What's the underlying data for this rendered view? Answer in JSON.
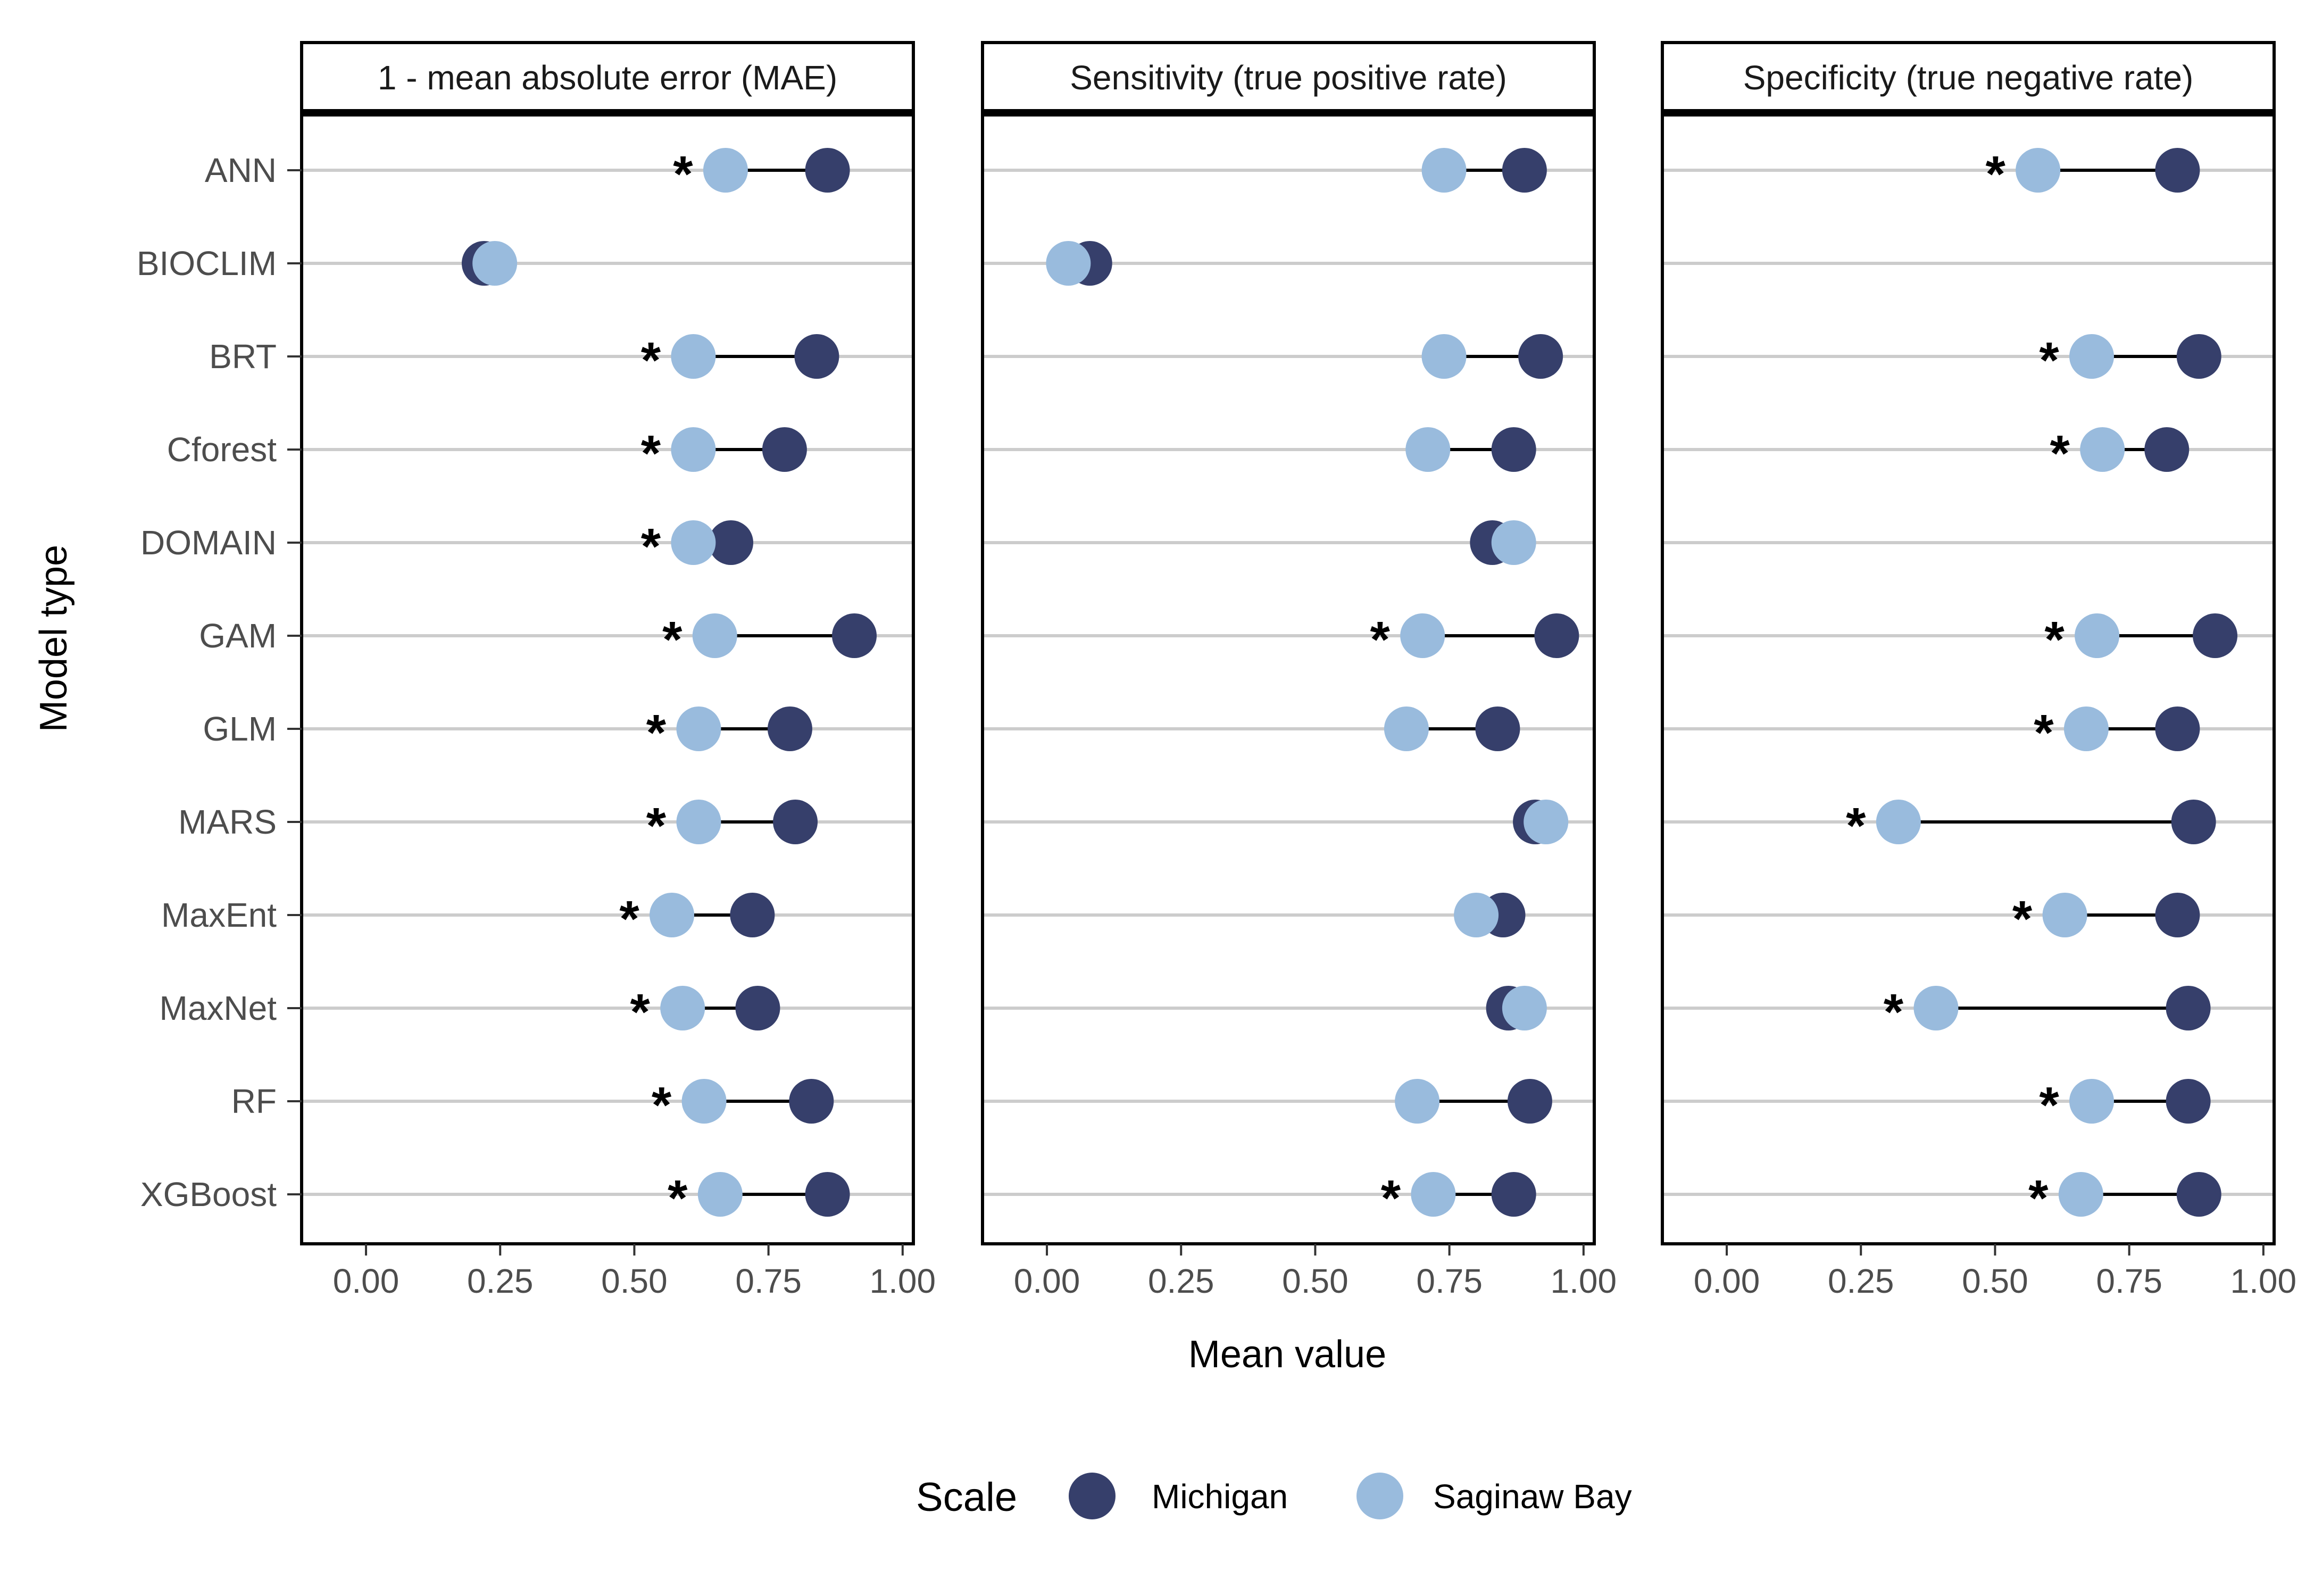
{
  "chart_data": {
    "type": "dumbbell",
    "ylabel": "Model type",
    "xlabel": "Mean value",
    "xlim": [
      -0.12,
      1.02
    ],
    "xticks": [
      "0.00",
      "0.25",
      "0.50",
      "0.75",
      "1.00"
    ],
    "categories": [
      "ANN",
      "BIOCLIM",
      "BRT",
      "Cforest",
      "DOMAIN",
      "GAM",
      "GLM",
      "MARS",
      "MaxEnt",
      "MaxNet",
      "RF",
      "XGBoost"
    ],
    "legend": {
      "title": "Scale",
      "position": "bottom",
      "items": [
        {
          "label": "Michigan",
          "color": "#363f6b"
        },
        {
          "label": "Saginaw Bay",
          "color": "#99bbdd"
        }
      ]
    },
    "significance_marker": "*",
    "colors": {
      "michigan": "#363f6b",
      "saginaw": "#99bbdd",
      "grid": "#cccccc",
      "segment": "#000000"
    },
    "panels": [
      {
        "title": "1 - mean absolute error (MAE)",
        "michigan": [
          0.86,
          0.22,
          0.84,
          0.78,
          0.68,
          0.91,
          0.79,
          0.8,
          0.72,
          0.73,
          0.83,
          0.86
        ],
        "saginaw": [
          0.67,
          0.24,
          0.61,
          0.61,
          0.61,
          0.65,
          0.62,
          0.62,
          0.57,
          0.59,
          0.63,
          0.66
        ],
        "significant": [
          true,
          false,
          true,
          true,
          true,
          true,
          true,
          true,
          true,
          true,
          true,
          true
        ]
      },
      {
        "title": "Sensitivity (true positive rate)",
        "michigan": [
          0.89,
          0.08,
          0.92,
          0.87,
          0.83,
          0.95,
          0.84,
          0.91,
          0.85,
          0.86,
          0.9,
          0.87
        ],
        "saginaw": [
          0.74,
          0.04,
          0.74,
          0.71,
          0.87,
          0.7,
          0.67,
          0.93,
          0.8,
          0.89,
          0.69,
          0.72
        ],
        "significant": [
          false,
          false,
          false,
          false,
          false,
          true,
          false,
          false,
          false,
          false,
          false,
          true
        ]
      },
      {
        "title": "Specificity (true negative rate)",
        "michigan": [
          0.84,
          null,
          0.88,
          0.82,
          null,
          0.91,
          0.84,
          0.87,
          0.84,
          0.86,
          0.86,
          0.88
        ],
        "saginaw": [
          0.58,
          null,
          0.68,
          0.7,
          null,
          0.69,
          0.67,
          0.32,
          0.63,
          0.39,
          0.68,
          0.66
        ],
        "significant": [
          true,
          false,
          true,
          true,
          false,
          true,
          true,
          true,
          true,
          true,
          true,
          true
        ]
      }
    ]
  }
}
